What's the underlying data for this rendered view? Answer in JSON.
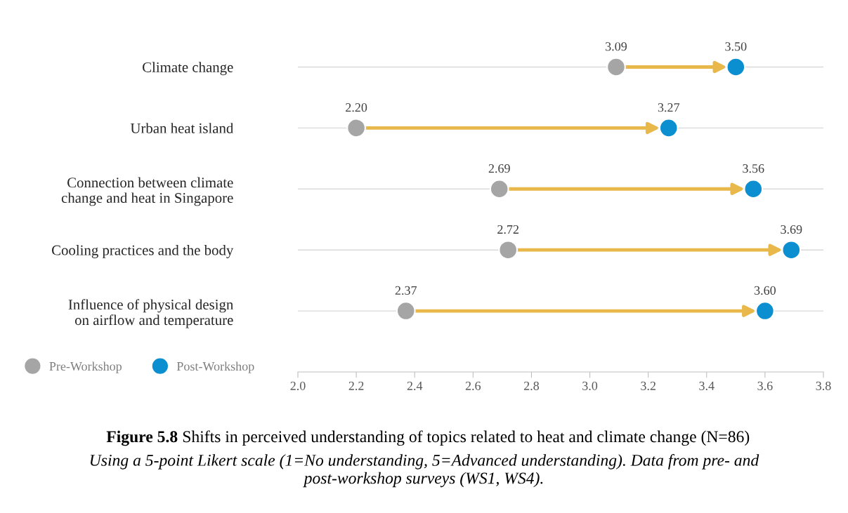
{
  "chart_data": {
    "type": "scatter",
    "orientation": "horizontal",
    "categories": [
      "Climate change",
      "Urban heat island",
      "Connection between climate\nchange and heat in Singapore",
      "Cooling practices and the body",
      "Influence of physical design\non airflow and temperature"
    ],
    "series": [
      {
        "name": "Pre-Workshop",
        "color": "#a5a5a5",
        "values": [
          3.09,
          2.2,
          2.69,
          2.72,
          2.37
        ],
        "value_labels": [
          "3.09",
          "2.20",
          "2.69",
          "2.72",
          "2.37"
        ]
      },
      {
        "name": "Post-Workshop",
        "color": "#0c8fd1",
        "values": [
          3.5,
          3.27,
          3.56,
          3.69,
          3.6
        ],
        "value_labels": [
          "3.50",
          "3.27",
          "3.56",
          "3.69",
          "3.60"
        ]
      }
    ],
    "xlim": [
      2.0,
      3.8
    ],
    "xticks": [
      {
        "value": 2.0,
        "label": "2.0"
      },
      {
        "value": 2.2,
        "label": "2.2"
      },
      {
        "value": 2.4,
        "label": "2.4"
      },
      {
        "value": 2.6,
        "label": "2.6"
      },
      {
        "value": 2.8,
        "label": "2.8"
      },
      {
        "value": 3.0,
        "label": "3.0"
      },
      {
        "value": 3.2,
        "label": "3.2"
      },
      {
        "value": 3.4,
        "label": "3.4"
      },
      {
        "value": 3.6,
        "label": "3.6"
      },
      {
        "value": 3.8,
        "label": "3.8"
      }
    ],
    "grid": "y",
    "legend": "bottom left",
    "marker": "circle",
    "annotations": [
      "Figure 5.8",
      "Shifts in perceived understanding of topics related to heat and climate change (N=86)",
      "Using a 5-point Likert scale (1=No understanding, 5=Advanced understanding). Data from pre- and\npost-workshop surveys (WS1, WS4)."
    ]
  }
}
